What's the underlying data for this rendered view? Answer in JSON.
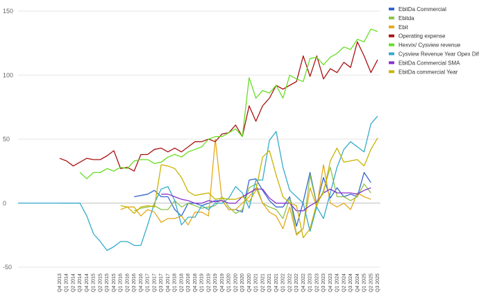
{
  "chart_data": {
    "type": "line",
    "title": "",
    "xlabel": "",
    "ylabel": "",
    "ylim": [
      -50,
      150
    ],
    "yticks": [
      -50,
      0,
      50,
      100,
      150
    ],
    "grid": true,
    "legend_position": "right",
    "categories": [
      "Q4 2013",
      "Q1 2014",
      "Q2 2014",
      "Q3 2014",
      "Q4 2014",
      "Q1 2015",
      "Q2 2015",
      "Q3 2015",
      "Q4 2015",
      "Q1 2016",
      "Q2 2016",
      "Q3 2016",
      "Q4 2016",
      "Q1 2017",
      "Q2 2017",
      "Q3 2017",
      "Q4 2017",
      "Q1 2018",
      "Q2 2018",
      "Q3 2018",
      "Q4 2018",
      "Q1 2019",
      "Q2 2019",
      "Q3 2019",
      "Q4 2019",
      "Q1 2020",
      "Q2 2020",
      "Q3 2020",
      "Q4 2020",
      "Q1 2021",
      "Q2 2021",
      "Q3 2021",
      "Q4 2021",
      "Q1 2022",
      "Q2 2022",
      "Q3 2022",
      "Q4 2022",
      "Q1 2023",
      "Q2 2023",
      "Q3 2023",
      "Q4 2023",
      "Q1 2024",
      "Q2 2024",
      "Q3 2024",
      "Q4 2024",
      "Q1 2025",
      "Q2 2025",
      "Q3 2025"
    ],
    "series": [
      {
        "name": "EbitDa Commercial",
        "color": "#3366cc",
        "values": [
          null,
          null,
          null,
          null,
          null,
          null,
          null,
          null,
          null,
          null,
          null,
          null,
          null,
          null,
          null,
          null,
          null,
          null,
          null,
          null,
          null,
          null,
          null,
          null,
          null,
          null,
          null,
          null,
          null,
          null,
          null,
          null,
          null,
          null,
          null,
          null,
          null,
          null,
          null,
          null,
          null,
          null,
          null,
          null,
          null,
          null,
          null,
          null
        ]
      },
      {
        "name": "Ebitda",
        "color": "#8bc34a",
        "values": [
          null,
          null,
          null,
          null,
          null,
          null,
          null,
          null,
          null,
          null,
          null,
          null,
          null,
          null,
          null,
          null,
          null,
          null,
          null,
          null,
          null,
          null,
          null,
          null,
          null,
          null,
          null,
          null,
          null,
          null,
          null,
          null,
          null,
          null,
          null,
          null,
          null,
          null,
          null,
          null,
          null,
          null,
          null,
          null,
          null,
          null,
          null,
          null
        ]
      },
      {
        "name": "Ebit",
        "color": "#e6a817",
        "values": [
          null,
          null,
          null,
          null,
          null,
          null,
          null,
          null,
          null,
          null,
          null,
          null,
          null,
          null,
          null,
          null,
          null,
          null,
          null,
          null,
          null,
          null,
          null,
          null,
          null,
          null,
          null,
          null,
          null,
          null,
          null,
          null,
          null,
          null,
          null,
          null,
          null,
          null,
          null,
          null,
          null,
          null,
          null,
          null,
          null,
          null,
          null,
          null
        ]
      },
      {
        "name": "Operating expense",
        "color": "#aa1111",
        "values": [
          null,
          null,
          null,
          null,
          null,
          null,
          null,
          null,
          null,
          null,
          null,
          null,
          null,
          null,
          null,
          null,
          null,
          null,
          null,
          null,
          null,
          null,
          null,
          null,
          null,
          null,
          null,
          null,
          null,
          null,
          null,
          null,
          null,
          null,
          null,
          null,
          null,
          null,
          null,
          null,
          null,
          null,
          null,
          null,
          null,
          null,
          null,
          null
        ]
      },
      {
        "name": "Hexvix/ Cysview revenue",
        "color": "#66dd22",
        "values": [
          null,
          null,
          null,
          null,
          null,
          null,
          null,
          null,
          null,
          null,
          null,
          null,
          null,
          null,
          null,
          null,
          null,
          null,
          null,
          null,
          null,
          null,
          null,
          null,
          null,
          null,
          null,
          null,
          null,
          null,
          null,
          null,
          null,
          null,
          null,
          null,
          null,
          null,
          null,
          null,
          null,
          null,
          null,
          null,
          null,
          null,
          null,
          null
        ]
      },
      {
        "name": "Cysview Revenue Year Opex Diff",
        "color": "#33aacc",
        "values": [
          null,
          null,
          null,
          null,
          null,
          null,
          null,
          null,
          null,
          null,
          null,
          null,
          null,
          null,
          null,
          null,
          null,
          null,
          null,
          null,
          null,
          null,
          null,
          null,
          null,
          null,
          null,
          null,
          null,
          null,
          null,
          null,
          null,
          null,
          null,
          null,
          null,
          null,
          null,
          null,
          null,
          null,
          null,
          null,
          null,
          null,
          null,
          null
        ]
      },
      {
        "name": "EbitDa Commercial SMA",
        "color": "#8833cc",
        "values": [
          null,
          null,
          null,
          null,
          null,
          null,
          null,
          null,
          null,
          null,
          null,
          null,
          null,
          null,
          null,
          null,
          null,
          null,
          null,
          null,
          null,
          null,
          null,
          null,
          null,
          null,
          null,
          null,
          null,
          null,
          null,
          null,
          null,
          null,
          null,
          null,
          null,
          null,
          null,
          null,
          null,
          null,
          null,
          null,
          null,
          null,
          null,
          null
        ]
      },
      {
        "name": "EbitDa commercial Year",
        "color": "#c8b400",
        "values": [
          null,
          null,
          null,
          null,
          null,
          null,
          null,
          null,
          null,
          null,
          null,
          null,
          null,
          null,
          null,
          null,
          null,
          null,
          null,
          null,
          null,
          null,
          null,
          null,
          null,
          null,
          null,
          null,
          null,
          null,
          null,
          null,
          null,
          null,
          null,
          null,
          null,
          null,
          null,
          null,
          null,
          null,
          null,
          null,
          null,
          null,
          null,
          null
        ]
      }
    ]
  }
}
